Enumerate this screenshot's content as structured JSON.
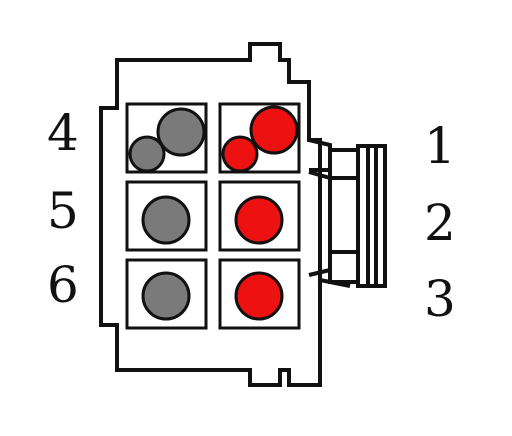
{
  "colors": {
    "outline": "#111111",
    "background": "#ffffff",
    "pin_red": "#ee1111",
    "pin_red_stroke": "#111111",
    "pin_gray": "#7a7a7a"
  },
  "pins": {
    "left": [
      {
        "label": "4",
        "color": "gray"
      },
      {
        "label": "5",
        "color": "gray"
      },
      {
        "label": "6",
        "color": "gray"
      }
    ],
    "right": [
      {
        "label": "1",
        "color": "red"
      },
      {
        "label": "2",
        "color": "red"
      },
      {
        "label": "3",
        "color": "red"
      }
    ]
  }
}
